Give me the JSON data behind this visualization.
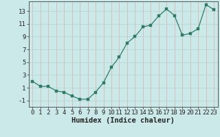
{
  "x": [
    0,
    1,
    2,
    3,
    4,
    5,
    6,
    7,
    8,
    9,
    10,
    11,
    12,
    13,
    14,
    15,
    16,
    17,
    18,
    19,
    20,
    21,
    22,
    23
  ],
  "y": [
    2.0,
    1.2,
    1.2,
    0.5,
    0.3,
    -0.3,
    -0.8,
    -0.8,
    0.3,
    1.8,
    4.2,
    5.8,
    8.0,
    9.0,
    10.5,
    10.8,
    12.2,
    13.3,
    12.3,
    9.2,
    9.5,
    10.2,
    14.0,
    13.2
  ],
  "xlabel": "Humidex (Indice chaleur)",
  "xlim": [
    -0.5,
    23.5
  ],
  "ylim": [
    -2,
    14.5
  ],
  "yticks": [
    -1,
    1,
    3,
    5,
    7,
    9,
    11,
    13
  ],
  "xticks": [
    0,
    1,
    2,
    3,
    4,
    5,
    6,
    7,
    8,
    9,
    10,
    11,
    12,
    13,
    14,
    15,
    16,
    17,
    18,
    19,
    20,
    21,
    22,
    23
  ],
  "line_color": "#2d7a65",
  "marker_color": "#2d7a65",
  "bg_color": "#cce9e9",
  "grid_color_v": "#d4b8b8",
  "grid_color_h": "#b8d4d4",
  "axis_color": "#555555",
  "font_color": "#222222",
  "tick_fontsize": 6.5,
  "xlabel_fontsize": 7.5
}
